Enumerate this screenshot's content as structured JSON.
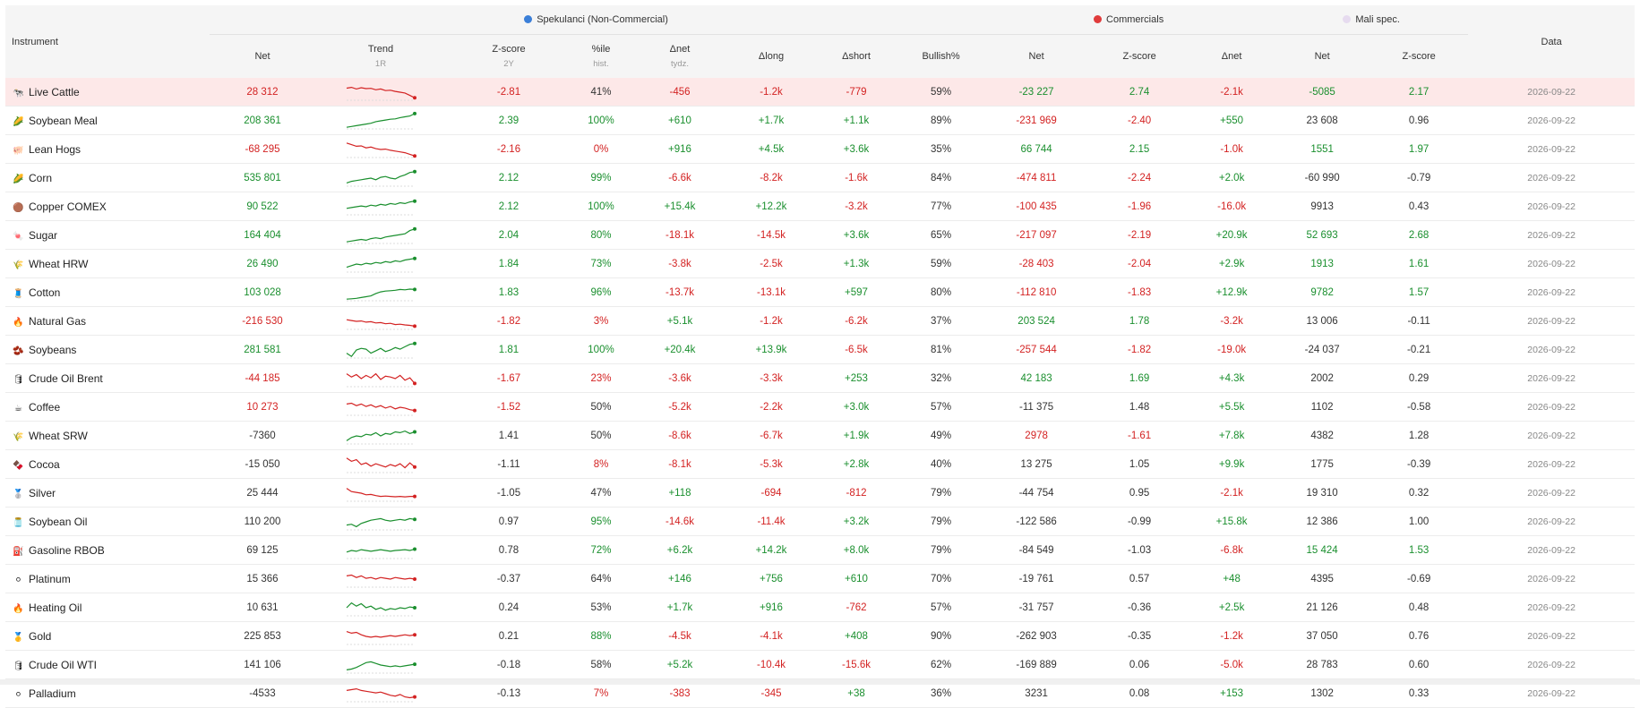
{
  "colors": {
    "positive": "#1a8f2e",
    "negative": "#d32222",
    "highlight_row": "#fde8e8",
    "spec_dot": "#3b7fd8",
    "comm_dot": "#e03b3b",
    "small_dot": "#e6dbef"
  },
  "groups": {
    "spec": "Spekulanci (Non-Commercial)",
    "comm": "Commercials",
    "small": "Mali spec."
  },
  "headers": {
    "instrument": "Instrument",
    "net": "Net",
    "trend": "Trend",
    "trend_sub": "1R",
    "zscore": "Z-score",
    "zscore_sub": "2Y",
    "pctile": "%ile",
    "pctile_sub": "hist.",
    "dnet": "Δnet",
    "dnet_sub": "tydz.",
    "dlong": "Δlong",
    "dshort": "Δshort",
    "bullish": "Bullish%",
    "c_net": "Net",
    "c_z": "Z-score",
    "c_dnet": "Δnet",
    "s_net": "Net",
    "s_z": "Z-score",
    "date": "Data"
  },
  "rows": [
    {
      "icon": "🐄",
      "name": "Live Cattle",
      "net": "28 312",
      "z": "-2.81",
      "pct": "41%",
      "dnet": "-456",
      "dlong": "-1.2k",
      "dshort": "-779",
      "bull": "59%",
      "cnet": "-23 227",
      "cz": "2.74",
      "cdnet": "-2.1k",
      "snet": "-5085",
      "sz": "2.17",
      "date": "2026-09-22",
      "trend": [
        0.75,
        0.8,
        0.7,
        0.78,
        0.72,
        0.74,
        0.65,
        0.7,
        0.6,
        0.62,
        0.55,
        0.5,
        0.45,
        0.3,
        0.15
      ]
    },
    {
      "icon": "🌽",
      "name": "Soybean Meal",
      "net": "208 361",
      "z": "2.39",
      "pct": "100%",
      "dnet": "+610",
      "dlong": "+1.7k",
      "dshort": "+1.1k",
      "bull": "89%",
      "cnet": "-231 969",
      "cz": "-2.40",
      "cdnet": "+550",
      "snet": "23 608",
      "sz": "0.96",
      "date": "2026-09-22",
      "trend": [
        0.1,
        0.15,
        0.2,
        0.25,
        0.3,
        0.35,
        0.45,
        0.5,
        0.55,
        0.6,
        0.62,
        0.7,
        0.75,
        0.8,
        0.95
      ]
    },
    {
      "icon": "🐖",
      "name": "Lean Hogs",
      "net": "-68 295",
      "z": "-2.16",
      "pct": "0%",
      "dnet": "+916",
      "dlong": "+4.5k",
      "dshort": "+3.6k",
      "bull": "35%",
      "cnet": "66 744",
      "cz": "2.15",
      "cdnet": "-1.0k",
      "snet": "1551",
      "sz": "1.97",
      "date": "2026-09-22",
      "trend": [
        0.9,
        0.8,
        0.7,
        0.72,
        0.6,
        0.65,
        0.55,
        0.5,
        0.52,
        0.45,
        0.4,
        0.35,
        0.3,
        0.2,
        0.1
      ]
    },
    {
      "icon": "🌽",
      "name": "Corn",
      "net": "535 801",
      "z": "2.12",
      "pct": "99%",
      "dnet": "-6.6k",
      "dlong": "-8.2k",
      "dshort": "-1.6k",
      "bull": "84%",
      "cnet": "-474 811",
      "cz": "-2.24",
      "cdnet": "+2.0k",
      "snet": "-60 990",
      "sz": "-0.79",
      "date": "2026-09-22",
      "trend": [
        0.2,
        0.3,
        0.35,
        0.4,
        0.45,
        0.5,
        0.4,
        0.55,
        0.6,
        0.5,
        0.45,
        0.6,
        0.7,
        0.85,
        0.9
      ]
    },
    {
      "icon": "🟤",
      "name": "Copper COMEX",
      "net": "90 522",
      "z": "2.12",
      "pct": "100%",
      "dnet": "+15.4k",
      "dlong": "+12.2k",
      "dshort": "-3.2k",
      "bull": "77%",
      "cnet": "-100 435",
      "cz": "-1.96",
      "cdnet": "-16.0k",
      "snet": "9913",
      "sz": "0.43",
      "date": "2026-09-22",
      "trend": [
        0.4,
        0.45,
        0.5,
        0.55,
        0.5,
        0.6,
        0.55,
        0.65,
        0.6,
        0.7,
        0.65,
        0.75,
        0.7,
        0.8,
        0.85
      ]
    },
    {
      "icon": "🍬",
      "name": "Sugar",
      "net": "164 404",
      "z": "2.04",
      "pct": "80%",
      "dnet": "-18.1k",
      "dlong": "-14.5k",
      "dshort": "+3.6k",
      "bull": "65%",
      "cnet": "-217 097",
      "cz": "-2.19",
      "cdnet": "+20.9k",
      "snet": "52 693",
      "sz": "2.68",
      "date": "2026-09-22",
      "trend": [
        0.1,
        0.15,
        0.2,
        0.25,
        0.2,
        0.3,
        0.35,
        0.3,
        0.4,
        0.45,
        0.5,
        0.55,
        0.6,
        0.8,
        0.9
      ]
    },
    {
      "icon": "🌾",
      "name": "Wheat HRW",
      "net": "26 490",
      "z": "1.84",
      "pct": "73%",
      "dnet": "-3.8k",
      "dlong": "-2.5k",
      "dshort": "+1.3k",
      "bull": "59%",
      "cnet": "-28 403",
      "cz": "-2.04",
      "cdnet": "+2.9k",
      "snet": "1913",
      "sz": "1.61",
      "date": "2026-09-22",
      "trend": [
        0.3,
        0.4,
        0.5,
        0.45,
        0.55,
        0.5,
        0.6,
        0.55,
        0.65,
        0.6,
        0.7,
        0.65,
        0.75,
        0.8,
        0.85
      ]
    },
    {
      "icon": "🧵",
      "name": "Cotton",
      "net": "103 028",
      "z": "1.83",
      "pct": "96%",
      "dnet": "-13.7k",
      "dlong": "-13.1k",
      "dshort": "+597",
      "bull": "80%",
      "cnet": "-112 810",
      "cz": "-1.83",
      "cdnet": "+12.9k",
      "snet": "9782",
      "sz": "1.57",
      "date": "2026-09-22",
      "trend": [
        0.1,
        0.12,
        0.15,
        0.2,
        0.25,
        0.3,
        0.45,
        0.55,
        0.6,
        0.62,
        0.65,
        0.7,
        0.68,
        0.72,
        0.7
      ]
    },
    {
      "icon": "🔥",
      "name": "Natural Gas",
      "net": "-216 530",
      "z": "-1.82",
      "pct": "3%",
      "dnet": "+5.1k",
      "dlong": "-1.2k",
      "dshort": "-6.2k",
      "bull": "37%",
      "cnet": "203 524",
      "cz": "1.78",
      "cdnet": "-3.2k",
      "snet": "13 006",
      "sz": "-0.11",
      "date": "2026-09-22",
      "trend": [
        0.6,
        0.55,
        0.5,
        0.52,
        0.45,
        0.48,
        0.4,
        0.42,
        0.35,
        0.38,
        0.3,
        0.32,
        0.28,
        0.25,
        0.2
      ]
    },
    {
      "icon": "🫘",
      "name": "Soybeans",
      "net": "281 581",
      "z": "1.81",
      "pct": "100%",
      "dnet": "+20.4k",
      "dlong": "+13.9k",
      "dshort": "-6.5k",
      "bull": "81%",
      "cnet": "-257 544",
      "cz": "-1.82",
      "cdnet": "-19.0k",
      "snet": "-24 037",
      "sz": "-0.21",
      "date": "2026-09-22",
      "trend": [
        0.3,
        0.1,
        0.5,
        0.6,
        0.55,
        0.3,
        0.45,
        0.6,
        0.4,
        0.5,
        0.65,
        0.55,
        0.7,
        0.85,
        0.9
      ]
    },
    {
      "icon": "🛢",
      "name": "Crude Oil Brent",
      "net": "-44 185",
      "z": "-1.67",
      "pct": "23%",
      "dnet": "-3.6k",
      "dlong": "-3.3k",
      "dshort": "+253",
      "bull": "32%",
      "cnet": "42 183",
      "cz": "1.69",
      "cdnet": "+4.3k",
      "snet": "2002",
      "sz": "0.29",
      "date": "2026-09-22",
      "trend": [
        0.8,
        0.6,
        0.75,
        0.5,
        0.7,
        0.55,
        0.8,
        0.45,
        0.65,
        0.6,
        0.5,
        0.7,
        0.4,
        0.55,
        0.2
      ]
    },
    {
      "icon": "☕",
      "name": "Coffee",
      "net": "10 273",
      "z": "-1.52",
      "pct": "50%",
      "dnet": "-5.2k",
      "dlong": "-2.2k",
      "dshort": "+3.0k",
      "bull": "57%",
      "cnet": "-11 375",
      "cz": "1.48",
      "cdnet": "+5.5k",
      "snet": "1102",
      "sz": "-0.58",
      "date": "2026-09-22",
      "trend": [
        0.7,
        0.75,
        0.6,
        0.7,
        0.55,
        0.65,
        0.5,
        0.6,
        0.45,
        0.55,
        0.4,
        0.5,
        0.45,
        0.35,
        0.3
      ]
    },
    {
      "icon": "🌾",
      "name": "Wheat SRW",
      "net": "-7360",
      "z": "1.41",
      "pct": "50%",
      "dnet": "-8.6k",
      "dlong": "-6.7k",
      "dshort": "+1.9k",
      "bull": "49%",
      "cnet": "2978",
      "cz": "-1.61",
      "cdnet": "+7.8k",
      "snet": "4382",
      "sz": "1.28",
      "date": "2026-09-22",
      "trend": [
        0.2,
        0.4,
        0.5,
        0.45,
        0.6,
        0.55,
        0.7,
        0.5,
        0.65,
        0.6,
        0.75,
        0.7,
        0.8,
        0.65,
        0.75
      ]
    },
    {
      "icon": "🍫",
      "name": "Cocoa",
      "net": "-15 050",
      "z": "-1.11",
      "pct": "8%",
      "dnet": "-8.1k",
      "dlong": "-5.3k",
      "dshort": "+2.8k",
      "bull": "40%",
      "cnet": "13 275",
      "cz": "1.05",
      "cdnet": "+9.9k",
      "snet": "1775",
      "sz": "-0.39",
      "date": "2026-09-22",
      "trend": [
        0.9,
        0.7,
        0.8,
        0.5,
        0.6,
        0.4,
        0.55,
        0.45,
        0.35,
        0.5,
        0.4,
        0.55,
        0.3,
        0.6,
        0.35
      ]
    },
    {
      "icon": "🥈",
      "name": "Silver",
      "net": "25 444",
      "z": "-1.05",
      "pct": "47%",
      "dnet": "+118",
      "dlong": "-694",
      "dshort": "-812",
      "bull": "79%",
      "cnet": "-44 754",
      "cz": "0.95",
      "cdnet": "-2.1k",
      "snet": "19 310",
      "sz": "0.32",
      "date": "2026-09-22",
      "trend": [
        0.8,
        0.6,
        0.55,
        0.5,
        0.4,
        0.42,
        0.35,
        0.3,
        0.32,
        0.3,
        0.28,
        0.3,
        0.27,
        0.3,
        0.3
      ]
    },
    {
      "icon": "🫙",
      "name": "Soybean Oil",
      "net": "110 200",
      "z": "0.97",
      "pct": "95%",
      "dnet": "-14.6k",
      "dlong": "-11.4k",
      "dshort": "+3.2k",
      "bull": "79%",
      "cnet": "-122 586",
      "cz": "-0.99",
      "cdnet": "+15.8k",
      "snet": "12 386",
      "sz": "1.00",
      "date": "2026-09-22",
      "trend": [
        0.3,
        0.35,
        0.2,
        0.4,
        0.5,
        0.6,
        0.65,
        0.7,
        0.6,
        0.55,
        0.6,
        0.65,
        0.6,
        0.7,
        0.65
      ]
    },
    {
      "icon": "⛽",
      "name": "Gasoline RBOB",
      "net": "69 125",
      "z": "0.78",
      "pct": "72%",
      "dnet": "+6.2k",
      "dlong": "+14.2k",
      "dshort": "+8.0k",
      "bull": "79%",
      "cnet": "-84 549",
      "cz": "-1.03",
      "cdnet": "-6.8k",
      "snet": "15 424",
      "sz": "1.53",
      "date": "2026-09-22",
      "trend": [
        0.4,
        0.5,
        0.45,
        0.55,
        0.5,
        0.45,
        0.5,
        0.55,
        0.5,
        0.45,
        0.5,
        0.52,
        0.55,
        0.5,
        0.58
      ]
    },
    {
      "icon": "⚪",
      "name": "Platinum",
      "net": "15 366",
      "z": "-0.37",
      "pct": "64%",
      "dnet": "+146",
      "dlong": "+756",
      "dshort": "+610",
      "bull": "70%",
      "cnet": "-19 761",
      "cz": "0.57",
      "cdnet": "+48",
      "snet": "4395",
      "sz": "-0.69",
      "date": "2026-09-22",
      "trend": [
        0.7,
        0.75,
        0.6,
        0.7,
        0.55,
        0.6,
        0.5,
        0.6,
        0.55,
        0.5,
        0.6,
        0.55,
        0.5,
        0.55,
        0.5
      ]
    },
    {
      "icon": "🔥",
      "name": "Heating Oil",
      "net": "10 631",
      "z": "0.24",
      "pct": "53%",
      "dnet": "+1.7k",
      "dlong": "+916",
      "dshort": "-762",
      "bull": "57%",
      "cnet": "-31 757",
      "cz": "-0.36",
      "cdnet": "+2.5k",
      "snet": "21 126",
      "sz": "0.48",
      "date": "2026-09-22",
      "trend": [
        0.5,
        0.8,
        0.6,
        0.75,
        0.5,
        0.6,
        0.4,
        0.5,
        0.35,
        0.45,
        0.4,
        0.5,
        0.45,
        0.55,
        0.5
      ]
    },
    {
      "icon": "🥇",
      "name": "Gold",
      "net": "225 853",
      "z": "0.21",
      "pct": "88%",
      "dnet": "-4.5k",
      "dlong": "-4.1k",
      "dshort": "+408",
      "bull": "90%",
      "cnet": "-262 903",
      "cz": "-0.35",
      "cdnet": "-1.2k",
      "snet": "37 050",
      "sz": "0.76",
      "date": "2026-09-22",
      "trend": [
        0.8,
        0.7,
        0.75,
        0.6,
        0.5,
        0.45,
        0.5,
        0.45,
        0.5,
        0.55,
        0.5,
        0.55,
        0.6,
        0.55,
        0.6
      ]
    },
    {
      "icon": "🛢",
      "name": "Crude Oil WTI",
      "net": "141 106",
      "z": "-0.18",
      "pct": "58%",
      "dnet": "+5.2k",
      "dlong": "-10.4k",
      "dshort": "-15.6k",
      "bull": "62%",
      "cnet": "-169 889",
      "cz": "0.06",
      "cdnet": "-5.0k",
      "snet": "28 783",
      "sz": "0.60",
      "date": "2026-09-22",
      "trend": [
        0.2,
        0.25,
        0.35,
        0.5,
        0.65,
        0.7,
        0.6,
        0.5,
        0.45,
        0.4,
        0.45,
        0.4,
        0.45,
        0.5,
        0.55
      ]
    },
    {
      "icon": "⚪",
      "name": "Palladium",
      "net": "-4533",
      "z": "-0.13",
      "pct": "7%",
      "dnet": "-383",
      "dlong": "-345",
      "dshort": "+38",
      "bull": "36%",
      "cnet": "3231",
      "cz": "0.08",
      "cdnet": "+153",
      "snet": "1302",
      "sz": "0.33",
      "date": "2026-09-22",
      "trend": [
        0.7,
        0.75,
        0.8,
        0.7,
        0.65,
        0.6,
        0.55,
        0.6,
        0.5,
        0.4,
        0.35,
        0.45,
        0.3,
        0.25,
        0.3
      ]
    }
  ]
}
